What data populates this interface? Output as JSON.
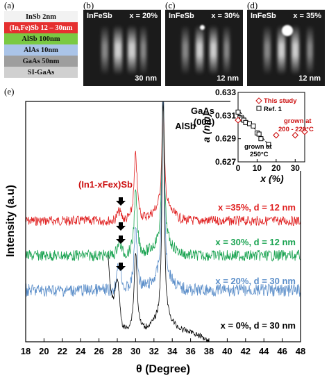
{
  "panel_labels": {
    "a": "(a)",
    "b": "(b)",
    "c": "(c)",
    "d": "(d)",
    "e": "(e)"
  },
  "layers": [
    {
      "label": "InSb 2nm",
      "color": "#f2f2f2"
    },
    {
      "label": "(In,Fe)Sb 12 – 30nm",
      "color": "#e53030"
    },
    {
      "label": "AlSb 100nm",
      "color": "#7ac943"
    },
    {
      "label": "AlAs 10nm",
      "color": "#aac4e8"
    },
    {
      "label": "GaAs 50nm",
      "color": "#9e9e9e"
    },
    {
      "label": "SI-GaAs",
      "color": "#d0d0d0"
    }
  ],
  "rheed": [
    {
      "title": "InFeSb",
      "comp": "x = 20%",
      "scale": "30 nm"
    },
    {
      "title": "InFeSb",
      "comp": "x = 30%",
      "scale": "12 nm"
    },
    {
      "title": "InFeSb",
      "comp": "x = 35%",
      "scale": "12 nm"
    }
  ],
  "main_chart": {
    "xlabel": "θ (Degree)",
    "ylabel": "Intensity (a.u)",
    "xticks": [
      "18",
      "20",
      "22",
      "24",
      "26",
      "28",
      "30",
      "32",
      "34",
      "36",
      "38",
      "40",
      "42",
      "44",
      "46",
      "48"
    ],
    "peak_labels": {
      "alsb": "AlSb",
      "gaas": "GaAs",
      "gaas_hkl": "(004)",
      "infesb": "(In1-xFex)Sb"
    }
  },
  "chart_data": {
    "type": "line",
    "xlabel": "θ (Degree)",
    "ylabel": "Intensity (a.u)",
    "xlim": [
      18,
      48
    ],
    "series": [
      {
        "name": "x =35%, d = 12 nm",
        "color": "#e02020",
        "peaks": [
          28.2,
          30.0,
          33.0
        ],
        "range": [
          18,
          48
        ]
      },
      {
        "name": "x = 30%, d = 12 nm",
        "color": "#1aa351",
        "peaks": [
          28.2,
          30.0,
          33.0
        ],
        "range": [
          18,
          48
        ]
      },
      {
        "name": "x = 20%, d = 30 nm",
        "color": "#5b8ec9",
        "peaks": [
          28.2,
          30.0,
          33.0
        ],
        "range": [
          18,
          48
        ]
      },
      {
        "name": "x = 0%, d = 30 nm",
        "color": "#000000",
        "peaks": [
          28.0,
          30.0,
          33.0
        ],
        "range": [
          27,
          38
        ]
      }
    ],
    "inset": {
      "type": "scatter",
      "xlabel": "x (%)",
      "ylabel": "a (nm)",
      "xlim": [
        0,
        35
      ],
      "ylim": [
        0.627,
        0.633
      ],
      "xticks": [
        "0",
        "10",
        "20",
        "30"
      ],
      "yticks": [
        "0.633",
        "0.631",
        "0.629",
        "0.627"
      ],
      "this_study": {
        "name": "This study",
        "x": [
          0,
          20,
          30,
          35
        ],
        "y": [
          0.6306,
          0.6293,
          0.6293,
          0.6296
        ]
      },
      "ref1": {
        "name": "Ref. 1",
        "x": [
          0,
          1,
          2,
          3,
          4,
          6,
          8,
          10,
          11,
          12,
          16
        ],
        "y": [
          0.6313,
          0.6308,
          0.6307,
          0.6306,
          0.6304,
          0.6303,
          0.6301,
          0.6295,
          0.6294,
          0.629,
          0.6285
        ]
      },
      "annotations": {
        "grown250_a": "grown at",
        "grown250_b": "250°C",
        "grown200_a": "grown at",
        "grown200_b": "200 - 220°C"
      }
    }
  }
}
